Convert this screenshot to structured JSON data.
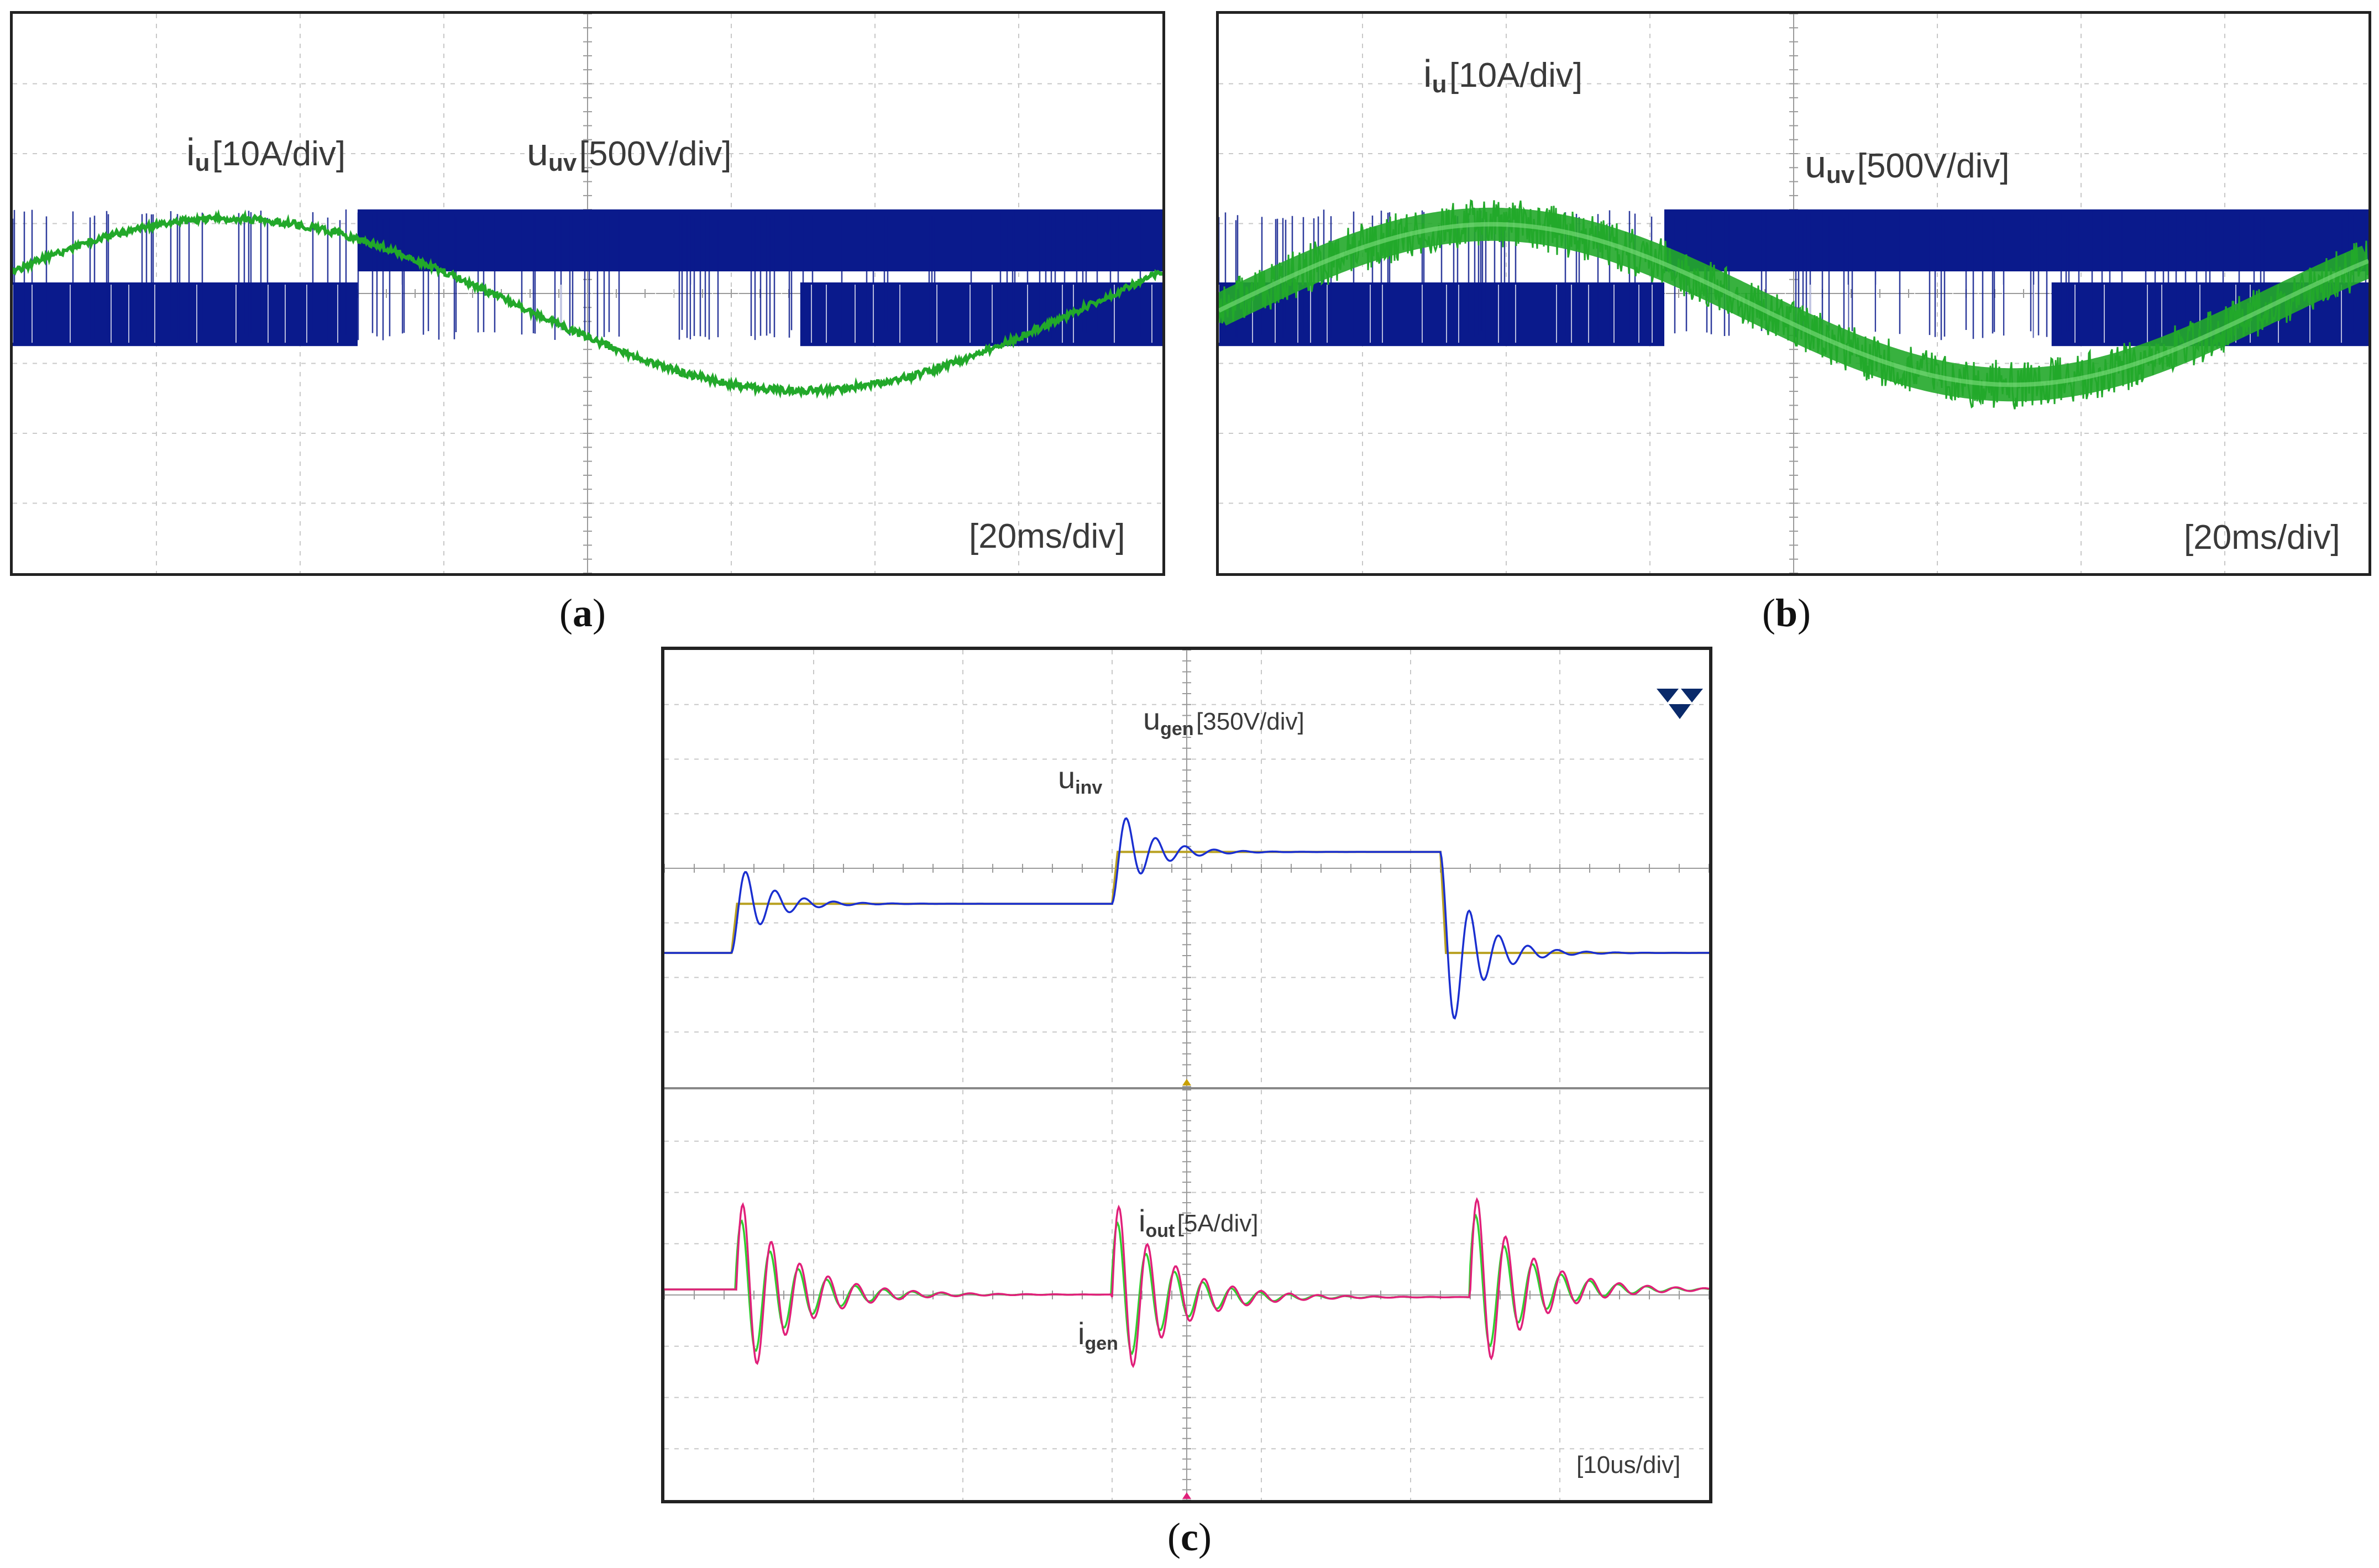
{
  "panels": {
    "a": {
      "caption_letter": "a",
      "timebase": "[20ms/div]",
      "label_i": {
        "sym": "i",
        "sub": "u",
        "scale": "[10A/div]"
      },
      "label_u": {
        "sym": "u",
        "sub": "uv",
        "scale": "[500V/div]"
      }
    },
    "b": {
      "caption_letter": "b",
      "timebase": "[20ms/div]",
      "label_i": {
        "sym": "i",
        "sub": "u",
        "scale": "[10A/div]"
      },
      "label_u": {
        "sym": "u",
        "sub": "uv",
        "scale": "[500V/div]"
      }
    },
    "c": {
      "caption_letter": "c",
      "timebase": "[10us/div]",
      "label_ugen": {
        "sym": "u",
        "sub": "gen",
        "scale": "[350V/div]"
      },
      "label_uinv": {
        "sym": "u",
        "sub": "inv"
      },
      "label_iout": {
        "sym": "i",
        "sub": "out",
        "scale": "[5A/div]"
      },
      "label_igen": {
        "sym": "i",
        "sub": "gen"
      }
    }
  },
  "colors": {
    "grid": "#c8c8c8",
    "voltage": "#0a1a8c",
    "current": "#22a82a",
    "u_gen": "#1a2fd0",
    "u_inv": "#b8a020",
    "i_out": "#e0207a",
    "i_gen": "#30d030",
    "trigger": "#c8a000"
  },
  "chart_data": [
    {
      "id": "a",
      "type": "line",
      "title": "",
      "x_unit": "ms",
      "x_per_div": 20,
      "x_divisions": 8,
      "series": [
        {
          "name": "i_u",
          "unit": "A",
          "per_div": 10,
          "shape": "sinusoid",
          "period_ms": 160,
          "amplitude_div": 1.5,
          "peak_at_ms": 30,
          "noise": "low"
        },
        {
          "name": "u_uv",
          "unit": "V",
          "per_div": 500,
          "shape": "PWM two-level",
          "levels_div": [
            0.6,
            -0.6
          ],
          "upper_band_ms": [
            48,
            160
          ],
          "lower_band_ms": [
            0,
            48
          ]
        }
      ]
    },
    {
      "id": "b",
      "type": "line",
      "title": "",
      "x_unit": "ms",
      "x_per_div": 20,
      "x_divisions": 8,
      "series": [
        {
          "name": "i_u",
          "unit": "A",
          "per_div": 10,
          "shape": "sinusoid",
          "period_ms": 145,
          "amplitude_div": 1.4,
          "peak_at_ms": 38,
          "noise": "high"
        },
        {
          "name": "u_uv",
          "unit": "V",
          "per_div": 500,
          "shape": "PWM two-level",
          "levels_div": [
            0.6,
            -0.6
          ],
          "upper_band_ms": [
            62,
            160
          ],
          "lower_band_ms": [
            0,
            62
          ]
        }
      ]
    },
    {
      "id": "c",
      "type": "line",
      "title": "",
      "x_unit": "us",
      "x_per_div": 10,
      "x_divisions": 7,
      "series": [
        {
          "name": "u_gen",
          "unit": "V",
          "per_div": 350,
          "shape": "damped-step response",
          "steps": [
            {
              "t_us": 4.5,
              "from_div": 0,
              "to_div": 0.9
            },
            {
              "t_us": 30,
              "from_div": 0.9,
              "to_div": 1.85
            },
            {
              "t_us": 52,
              "from_div": 1.85,
              "to_div": 0
            }
          ]
        },
        {
          "name": "u_inv",
          "unit": "V",
          "per_div": 350,
          "shape": "step",
          "steps": [
            {
              "t_us": 4.5,
              "from_div": 0,
              "to_div": 0.9
            },
            {
              "t_us": 30,
              "from_div": 0.9,
              "to_div": 1.85
            },
            {
              "t_us": 52,
              "from_div": 1.85,
              "to_div": 0
            }
          ]
        },
        {
          "name": "i_out",
          "unit": "A",
          "per_div": 5,
          "shape": "damped ringing at edges",
          "edges_us": [
            4.8,
            30,
            54
          ]
        },
        {
          "name": "i_gen",
          "unit": "A",
          "per_div": 5,
          "shape": "damped ringing at edges",
          "edges_us": [
            4.8,
            30,
            54
          ]
        }
      ]
    }
  ]
}
